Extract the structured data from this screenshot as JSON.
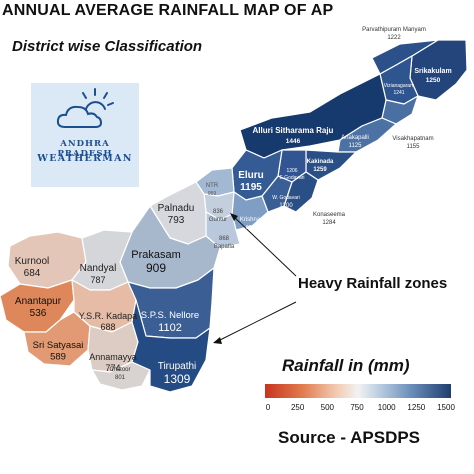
{
  "title": "ANNUAL AVERAGE RAINFALL MAP OF AP",
  "subtitle": "District wise Classification",
  "logo": {
    "line1": "ANDHRA PRADESH",
    "line2": "WEATHERMAN"
  },
  "annotation": "Heavy Rainfall zones",
  "legend": {
    "title": "Rainfall in (mm)",
    "ticks": [
      "0",
      "250",
      "500",
      "750",
      "1000",
      "1250",
      "1500"
    ],
    "min": 0,
    "max": 1500,
    "colors": [
      "#c8341f",
      "#e07b4e",
      "#f2c9b0",
      "#f2f2f2",
      "#b8cbe0",
      "#6d90bb",
      "#1f3e70"
    ]
  },
  "source": "Source - APSDPS",
  "districts": [
    {
      "id": "parvathipuram",
      "name": "Parvathipuram Manyam",
      "value": "1222"
    },
    {
      "id": "srikakulam",
      "name": "Srikakulam",
      "value": "1250"
    },
    {
      "id": "vizianagaram",
      "name": "Vizianagaram",
      "value": "1241"
    },
    {
      "id": "visakhapatnam",
      "name": "Visakhapatnam",
      "value": "1155"
    },
    {
      "id": "alluri",
      "name": "Alluri Sitharama Raju",
      "value": "1446"
    },
    {
      "id": "anakapalli",
      "name": "Anakapalli",
      "value": "1125"
    },
    {
      "id": "kakinada",
      "name": "Kakinada",
      "value": "1259"
    },
    {
      "id": "egodavari",
      "name": "E.Godavari",
      "value": "1206"
    },
    {
      "id": "wgodavari",
      "name": "W. Godavari",
      "value": "1200"
    },
    {
      "id": "konaseema",
      "name": "Konaseema",
      "value": "1284"
    },
    {
      "id": "eluru",
      "name": "Eluru",
      "value": "1195"
    },
    {
      "id": "ntr",
      "name": "NTR",
      "value": "959"
    },
    {
      "id": "krishna",
      "name": "Krishna",
      "value": "993"
    },
    {
      "id": "guntur",
      "name": "Guntur",
      "value": "836"
    },
    {
      "id": "bapatla",
      "name": "Bapatla",
      "value": "868"
    },
    {
      "id": "palnadu",
      "name": "Palnadu",
      "value": "793"
    },
    {
      "id": "prakasam",
      "name": "Prakasam",
      "value": "909"
    },
    {
      "id": "kurnool",
      "name": "Kurnool",
      "value": "684"
    },
    {
      "id": "nandyal",
      "name": "Nandyal",
      "value": "787"
    },
    {
      "id": "anantapur",
      "name": "Anantapur",
      "value": "536"
    },
    {
      "id": "ysrkadapa",
      "name": "Y.S.R. Kadapa",
      "value": "688"
    },
    {
      "id": "srisatyasai",
      "name": "Sri Satyasai",
      "value": "589"
    },
    {
      "id": "annamayya",
      "name": "Annamayya",
      "value": "774"
    },
    {
      "id": "spsnellore",
      "name": "S.P.S. Nellore",
      "value": "1102"
    },
    {
      "id": "tirupathi",
      "name": "Tirupathi",
      "value": "1309"
    },
    {
      "id": "chittoor",
      "name": "Chittoor",
      "value": "801"
    }
  ]
}
